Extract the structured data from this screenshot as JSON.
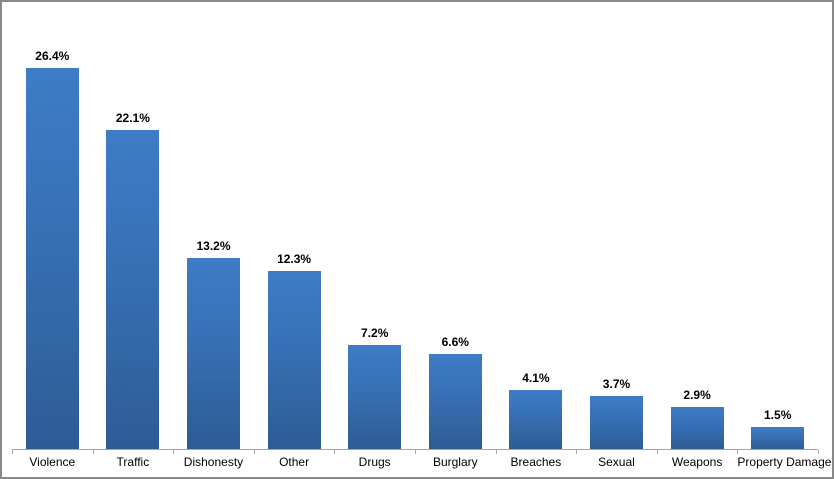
{
  "chart_data": {
    "type": "bar",
    "title": "",
    "xlabel": "",
    "ylabel": "",
    "categories": [
      "Violence",
      "Traffic",
      "Dishonesty",
      "Other",
      "Drugs",
      "Burglary",
      "Breaches",
      "Sexual",
      "Weapons",
      "Property Damage"
    ],
    "values": [
      26.4,
      22.1,
      13.2,
      12.3,
      7.2,
      6.6,
      4.1,
      3.7,
      2.9,
      1.5
    ],
    "data_labels": [
      "26.4%",
      "22.1%",
      "13.2%",
      "12.3%",
      "7.2%",
      "6.6%",
      "4.1%",
      "3.7%",
      "2.9%",
      "1.5%"
    ],
    "ylim": [
      0,
      30
    ],
    "grid": false,
    "legend": false,
    "colors": {
      "bar_gradient_top": "#3e7cc7",
      "bar_gradient_bottom": "#2d5c95",
      "axis_line": "#a6a6a6",
      "text": "#000000",
      "chart_border": "#898989",
      "background": "#ffffff"
    }
  }
}
